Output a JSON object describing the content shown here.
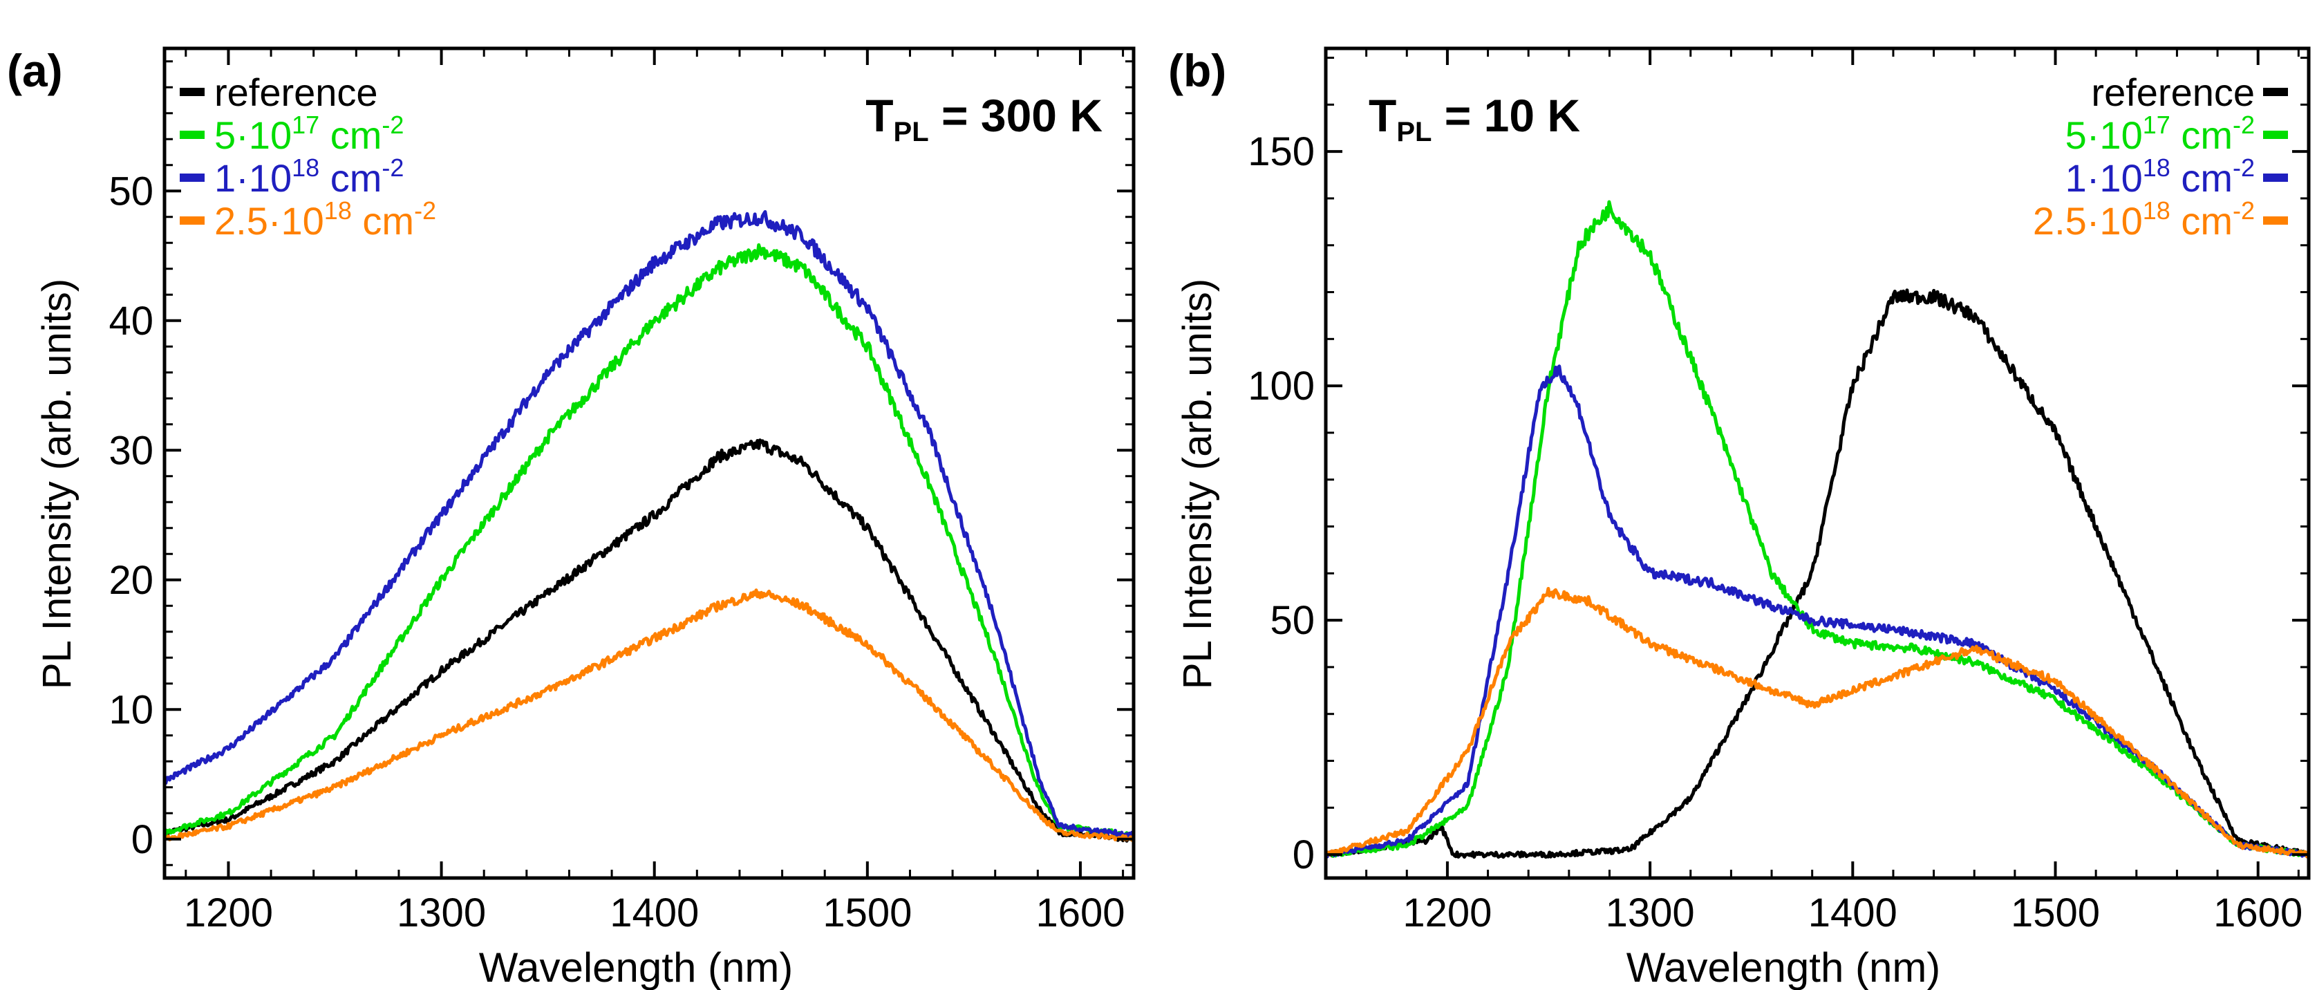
{
  "chart_data": [
    {
      "panel_label": "(a)",
      "type": "line",
      "annotation": {
        "main": "T",
        "sub": "PL",
        "rest": " = 300 K"
      },
      "xlabel": "Wavelength (nm)",
      "ylabel": "PL Intensity (arb. units)",
      "xlim": [
        1170,
        1625
      ],
      "ylim": [
        -3,
        61
      ],
      "xticks": [
        1200,
        1300,
        1400,
        1500,
        1600
      ],
      "yticks": [
        0,
        10,
        20,
        30,
        40,
        50
      ],
      "legend_position": "top-left",
      "series": [
        {
          "name": "reference",
          "legend": {
            "prefix": "reference",
            "sup": "",
            "unit": ""
          },
          "color": "#000000",
          "x": [
            1170,
            1200,
            1250,
            1300,
            1350,
            1400,
            1430,
            1450,
            1470,
            1500,
            1530,
            1560,
            1580,
            1590,
            1625
          ],
          "y": [
            0.5,
            1.5,
            6,
            13,
            19,
            25,
            29.5,
            30.5,
            29,
            24,
            16,
            8,
            2.5,
            0.5,
            0
          ]
        },
        {
          "name": "5·10^17 cm^-2",
          "legend": {
            "prefix": "5·10",
            "sup": "17",
            "unit": " cm",
            "usup": "-2"
          },
          "color": "#00dd00",
          "x": [
            1170,
            1200,
            1250,
            1300,
            1350,
            1400,
            1430,
            1450,
            1470,
            1500,
            1530,
            1560,
            1580,
            1590,
            1625
          ],
          "y": [
            0.5,
            2,
            8,
            20,
            31,
            40,
            44,
            45.5,
            44,
            38,
            27,
            14,
            4,
            1,
            0.3
          ]
        },
        {
          "name": "1·10^18 cm^-2",
          "legend": {
            "prefix": "1·10",
            "sup": "18",
            "unit": " cm",
            "usup": "-2"
          },
          "color": "#1f1fbf",
          "x": [
            1170,
            1200,
            1250,
            1300,
            1350,
            1400,
            1430,
            1450,
            1470,
            1500,
            1530,
            1560,
            1580,
            1590,
            1625
          ],
          "y": [
            4.5,
            7,
            14,
            25,
            36,
            44.5,
            47.5,
            48,
            46.5,
            41,
            31,
            17,
            5,
            1,
            0.3
          ]
        },
        {
          "name": "2.5·10^18 cm^-2",
          "legend": {
            "prefix": "2.5·10",
            "sup": "18",
            "unit": " cm",
            "usup": "-2"
          },
          "color": "#ff8000",
          "x": [
            1170,
            1200,
            1250,
            1300,
            1350,
            1400,
            1430,
            1450,
            1470,
            1500,
            1530,
            1560,
            1580,
            1590,
            1625
          ],
          "y": [
            0,
            1,
            4,
            8,
            11.5,
            15.5,
            18,
            19,
            18,
            15,
            10.5,
            5.5,
            2,
            0.5,
            0
          ]
        }
      ]
    },
    {
      "panel_label": "(b)",
      "type": "line",
      "annotation": {
        "main": "T",
        "sub": "PL",
        "rest": " = 10 K"
      },
      "xlabel": "Wavelength (nm)",
      "ylabel": "PL Intensity (arb. units)",
      "xlim": [
        1140,
        1625
      ],
      "ylim": [
        -5,
        172
      ],
      "xticks": [
        1200,
        1300,
        1400,
        1500,
        1600
      ],
      "yticks": [
        0,
        50,
        100,
        150
      ],
      "legend_position": "top-right",
      "series": [
        {
          "name": "reference",
          "legend": {
            "prefix": "reference",
            "sup": "",
            "unit": ""
          },
          "color": "#000000",
          "x": [
            1140,
            1190,
            1197,
            1203,
            1250,
            1290,
            1320,
            1350,
            1380,
            1400,
            1420,
            1440,
            1460,
            1500,
            1540,
            1570,
            1590,
            1625
          ],
          "y": [
            0,
            3,
            6,
            0,
            0,
            1,
            12,
            35,
            60,
            100,
            119,
            119,
            115,
            90,
            50,
            20,
            3,
            0
          ]
        },
        {
          "name": "5·10^17 cm^-2",
          "legend": {
            "prefix": "5·10",
            "sup": "17",
            "unit": " cm",
            "usup": "-2"
          },
          "color": "#00dd00",
          "x": [
            1140,
            1180,
            1210,
            1230,
            1250,
            1265,
            1280,
            1300,
            1330,
            1360,
            1380,
            1400,
            1430,
            1460,
            1500,
            1550,
            1590,
            1625
          ],
          "y": [
            0,
            2,
            10,
            40,
            100,
            130,
            138,
            128,
            95,
            60,
            48,
            45,
            44,
            41,
            33,
            17,
            2,
            0
          ]
        },
        {
          "name": "1·10^18 cm^-2",
          "legend": {
            "prefix": "1·10",
            "sup": "18",
            "unit": " cm",
            "usup": "-2"
          },
          "color": "#1f1fbf",
          "x": [
            1140,
            1180,
            1210,
            1230,
            1245,
            1255,
            1265,
            1280,
            1300,
            1330,
            1360,
            1380,
            1420,
            1460,
            1500,
            1550,
            1590,
            1625
          ],
          "y": [
            0,
            3,
            15,
            60,
            98,
            104,
            95,
            72,
            60,
            58,
            53,
            50,
            48,
            45,
            35,
            18,
            2,
            0
          ]
        },
        {
          "name": "2.5·10^18 cm^-2",
          "legend": {
            "prefix": "2.5·10",
            "sup": "18",
            "unit": " cm",
            "usup": "-2"
          },
          "color": "#ff8000",
          "x": [
            1140,
            1180,
            1210,
            1230,
            1250,
            1270,
            1300,
            1330,
            1360,
            1380,
            1420,
            1460,
            1500,
            1550,
            1590,
            1625
          ],
          "y": [
            0,
            5,
            22,
            45,
            56,
            54,
            45,
            40,
            35,
            32,
            38,
            44,
            37,
            18,
            2,
            0
          ]
        }
      ]
    }
  ]
}
